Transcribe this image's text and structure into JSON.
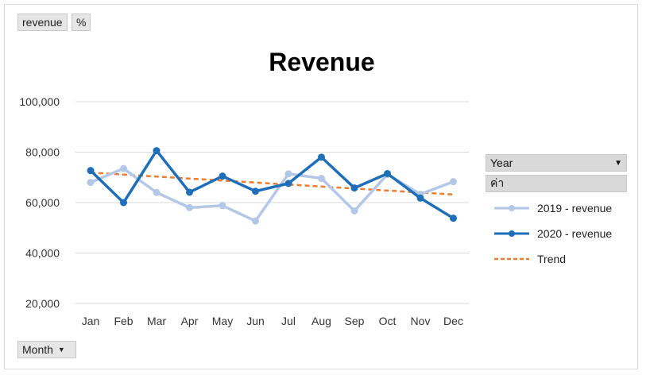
{
  "field_buttons": {
    "revenue": "revenue",
    "percent": "%",
    "month": "Month"
  },
  "legend": {
    "header": "Year",
    "subheader": "ค่า",
    "items": [
      {
        "label": "2019 - revenue",
        "color": "#b4c7e7"
      },
      {
        "label": "2020 - revenue",
        "color": "#1f6fb8"
      },
      {
        "label": "Trend",
        "color": "#ed7d31"
      }
    ]
  },
  "chart_data": {
    "type": "line",
    "title": "Revenue",
    "categories": [
      "Jan",
      "Feb",
      "Mar",
      "Apr",
      "May",
      "Jun",
      "Jul",
      "Aug",
      "Sep",
      "Oct",
      "Nov",
      "Dec"
    ],
    "series": [
      {
        "name": "2019 - revenue",
        "color": "#b4c7e7",
        "values": [
          68000,
          73500,
          64000,
          58000,
          58800,
          52700,
          71400,
          69600,
          56700,
          71200,
          63300,
          68300
        ]
      },
      {
        "name": "2020 - revenue",
        "color": "#1f6fb8",
        "values": [
          72700,
          60000,
          80600,
          64100,
          70500,
          64500,
          67600,
          78000,
          65800,
          71500,
          61800,
          53800
        ]
      }
    ],
    "trend": {
      "name": "Trend",
      "color": "#ed7d31",
      "start": 71900,
      "end": 63200
    },
    "ylim": [
      20000,
      100000
    ],
    "yticks": [
      20000,
      40000,
      60000,
      80000,
      100000
    ],
    "ytick_labels": [
      "20,000",
      "40,000",
      "60,000",
      "80,000",
      "100,000"
    ],
    "grid": true,
    "legend_position": "right"
  }
}
